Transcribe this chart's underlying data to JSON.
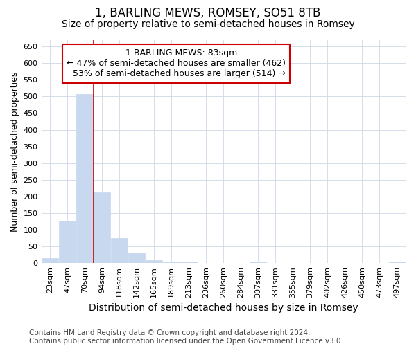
{
  "title": "1, BARLING MEWS, ROMSEY, SO51 8TB",
  "subtitle": "Size of property relative to semi-detached houses in Romsey",
  "xlabel_bottom": "Distribution of semi-detached houses by size in Romsey",
  "ylabel": "Number of semi-detached properties",
  "categories": [
    "23sqm",
    "47sqm",
    "70sqm",
    "94sqm",
    "118sqm",
    "142sqm",
    "165sqm",
    "189sqm",
    "213sqm",
    "236sqm",
    "260sqm",
    "284sqm",
    "307sqm",
    "331sqm",
    "355sqm",
    "379sqm",
    "402sqm",
    "426sqm",
    "450sqm",
    "473sqm",
    "497sqm"
  ],
  "values": [
    15,
    127,
    507,
    212,
    76,
    31,
    8,
    5,
    4,
    0,
    0,
    0,
    5,
    0,
    0,
    0,
    0,
    0,
    0,
    0,
    5
  ],
  "bar_color": "#c8d8ee",
  "bar_edge_color": "#c8d8ee",
  "property_label": "1 BARLING MEWS: 83sqm",
  "pct_smaller": 47,
  "count_smaller": 462,
  "pct_larger": 53,
  "count_larger": 514,
  "vline_x_index": 2.5,
  "ylim": [
    0,
    670
  ],
  "yticks": [
    0,
    50,
    100,
    150,
    200,
    250,
    300,
    350,
    400,
    450,
    500,
    550,
    600,
    650
  ],
  "annotation_box_color": "#ffffff",
  "annotation_box_edge": "#cc0000",
  "vline_color": "#cc0000",
  "grid_color": "#d0d8e8",
  "footnote": "Contains HM Land Registry data © Crown copyright and database right 2024.\nContains public sector information licensed under the Open Government Licence v3.0.",
  "title_fontsize": 12,
  "subtitle_fontsize": 10,
  "ylabel_fontsize": 9,
  "xlabel_fontsize": 10,
  "tick_fontsize": 8,
  "annot_fontsize": 9,
  "footnote_fontsize": 7.5
}
